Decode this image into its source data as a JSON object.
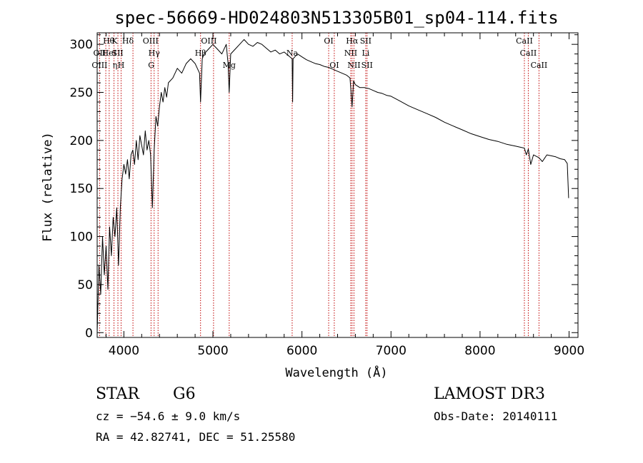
{
  "chart_data": {
    "type": "line",
    "title": "spec-56669-HD024803N513305B01_sp04-114.fits",
    "xlabel": "Wavelength (Å)",
    "ylabel": "Flux (relative)",
    "xlim": [
      3700,
      9100
    ],
    "ylim": [
      -5,
      312
    ],
    "xticks": [
      "4000",
      "5000",
      "6000",
      "7000",
      "8000",
      "9000"
    ],
    "xtick_values": [
      4000,
      5000,
      6000,
      7000,
      8000,
      9000
    ],
    "yticks": [
      "0",
      "50",
      "100",
      "150",
      "200",
      "250",
      "300"
    ],
    "ytick_values": [
      0,
      50,
      100,
      150,
      200,
      250,
      300
    ],
    "series": [
      {
        "name": "flux",
        "x": [
          3700,
          3720,
          3740,
          3760,
          3780,
          3800,
          3820,
          3840,
          3860,
          3880,
          3900,
          3920,
          3940,
          3960,
          3980,
          4000,
          4020,
          4040,
          4060,
          4080,
          4100,
          4120,
          4140,
          4160,
          4180,
          4200,
          4220,
          4240,
          4260,
          4280,
          4300,
          4320,
          4340,
          4360,
          4380,
          4400,
          4420,
          4440,
          4460,
          4480,
          4500,
          4550,
          4600,
          4650,
          4700,
          4750,
          4800,
          4850,
          4861,
          4880,
          4900,
          4950,
          5000,
          5050,
          5100,
          5150,
          5170,
          5183,
          5200,
          5250,
          5300,
          5350,
          5400,
          5450,
          5500,
          5550,
          5600,
          5650,
          5700,
          5750,
          5800,
          5850,
          5890,
          5895,
          5900,
          5950,
          6000,
          6050,
          6100,
          6150,
          6200,
          6250,
          6300,
          6350,
          6400,
          6450,
          6500,
          6540,
          6563,
          6580,
          6600,
          6650,
          6700,
          6750,
          6800,
          6850,
          6900,
          6950,
          7000,
          7100,
          7200,
          7300,
          7400,
          7500,
          7600,
          7700,
          7800,
          7900,
          8000,
          8100,
          8200,
          8300,
          8400,
          8498,
          8520,
          8542,
          8570,
          8600,
          8662,
          8700,
          8750,
          8800,
          8850,
          8900,
          8950,
          8980,
          8995
        ],
        "y": [
          0,
          70,
          40,
          100,
          60,
          90,
          45,
          110,
          80,
          120,
          100,
          130,
          70,
          130,
          160,
          175,
          165,
          180,
          160,
          185,
          190,
          175,
          200,
          180,
          205,
          195,
          185,
          210,
          190,
          200,
          185,
          130,
          190,
          225,
          215,
          235,
          250,
          240,
          255,
          245,
          260,
          265,
          275,
          270,
          280,
          285,
          280,
          270,
          240,
          285,
          290,
          295,
          300,
          295,
          290,
          300,
          280,
          250,
          290,
          295,
          300,
          305,
          300,
          298,
          302,
          300,
          296,
          292,
          294,
          290,
          292,
          288,
          285,
          240,
          285,
          290,
          287,
          284,
          282,
          280,
          279,
          277,
          276,
          274,
          272,
          270,
          268,
          265,
          235,
          262,
          258,
          255,
          255,
          254,
          252,
          250,
          249,
          247,
          246,
          241,
          236,
          232,
          228,
          224,
          219,
          215,
          211,
          207,
          204,
          201,
          199,
          196,
          194,
          192,
          185,
          191,
          175,
          185,
          182,
          178,
          185,
          184,
          183,
          181,
          180,
          176,
          140
        ]
      }
    ],
    "line_labels": [
      {
        "row": 1,
        "x": 3830,
        "text": "Hθ"
      },
      {
        "row": 1,
        "x": 3895,
        "text": "K"
      },
      {
        "row": 1,
        "x": 4045,
        "text": "Hδ"
      },
      {
        "row": 1,
        "x": 4300,
        "text": "OIII"
      },
      {
        "row": 1,
        "x": 4955,
        "text": "OIII"
      },
      {
        "row": 1,
        "x": 6300,
        "text": "OI"
      },
      {
        "row": 1,
        "x": 6563,
        "text": "Hα"
      },
      {
        "row": 1,
        "x": 6716,
        "text": "SII"
      },
      {
        "row": 1,
        "x": 8498,
        "text": "CaII"
      },
      {
        "row": 2,
        "x": 3727,
        "text": "OII"
      },
      {
        "row": 2,
        "x": 3835,
        "text": "HeI"
      },
      {
        "row": 2,
        "x": 3930,
        "text": "SII"
      },
      {
        "row": 2,
        "x": 4340,
        "text": "Hγ"
      },
      {
        "row": 2,
        "x": 4861,
        "text": "Hβ"
      },
      {
        "row": 2,
        "x": 5890,
        "text": "Na"
      },
      {
        "row": 2,
        "x": 6548,
        "text": "NII"
      },
      {
        "row": 2,
        "x": 6716,
        "text": "Li"
      },
      {
        "row": 2,
        "x": 8542,
        "text": "CaII"
      },
      {
        "row": 3,
        "x": 3727,
        "text": "OIII"
      },
      {
        "row": 3,
        "x": 3900,
        "text": "η"
      },
      {
        "row": 3,
        "x": 3969,
        "text": "H"
      },
      {
        "row": 3,
        "x": 4307,
        "text": "G"
      },
      {
        "row": 3,
        "x": 5183,
        "text": "Mg"
      },
      {
        "row": 3,
        "x": 6363,
        "text": "OI"
      },
      {
        "row": 3,
        "x": 6584,
        "text": "NII"
      },
      {
        "row": 3,
        "x": 6731,
        "text": "SII"
      },
      {
        "row": 3,
        "x": 8662,
        "text": "CaII"
      }
    ],
    "line_markers": [
      3727,
      3797,
      3835,
      3889,
      3933,
      3969,
      4102,
      4305,
      4340,
      4384,
      4861,
      5007,
      5183,
      5890,
      6300,
      6363,
      6548,
      6563,
      6584,
      6716,
      6731,
      8498,
      8542,
      8662
    ]
  },
  "info": {
    "object_type": "STAR",
    "subclass": "G6",
    "survey": "LAMOST DR3",
    "redshift": "cz = −54.6 ± 9.0 km/s",
    "obs_date": "Obs-Date: 20140111",
    "coords": "RA =  42.82741, DEC =  51.25580"
  },
  "colors": {
    "marker": "#c00000",
    "spectrum": "#000000",
    "axis": "#000000"
  }
}
